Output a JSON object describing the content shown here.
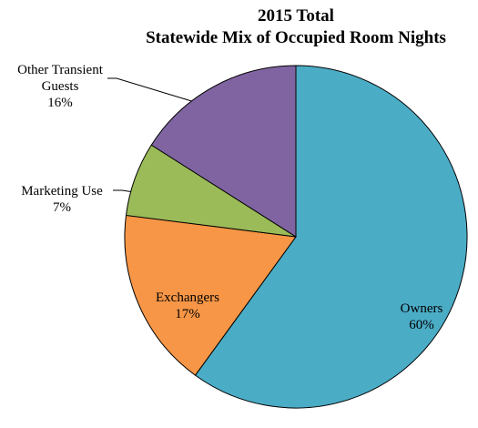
{
  "chart_data": {
    "type": "pie",
    "title": "2015 Total",
    "subtitle": "Statewide Mix of Occupied Room Nights",
    "categories": [
      "Owners",
      "Exchangers",
      "Marketing Use",
      "Other Transient Guests"
    ],
    "values": [
      60,
      17,
      7,
      16
    ],
    "value_labels": [
      "60%",
      "17%",
      "7%",
      "16%"
    ],
    "colors": [
      "#4bacc6",
      "#f79646",
      "#9bbb59",
      "#8064a2"
    ]
  }
}
